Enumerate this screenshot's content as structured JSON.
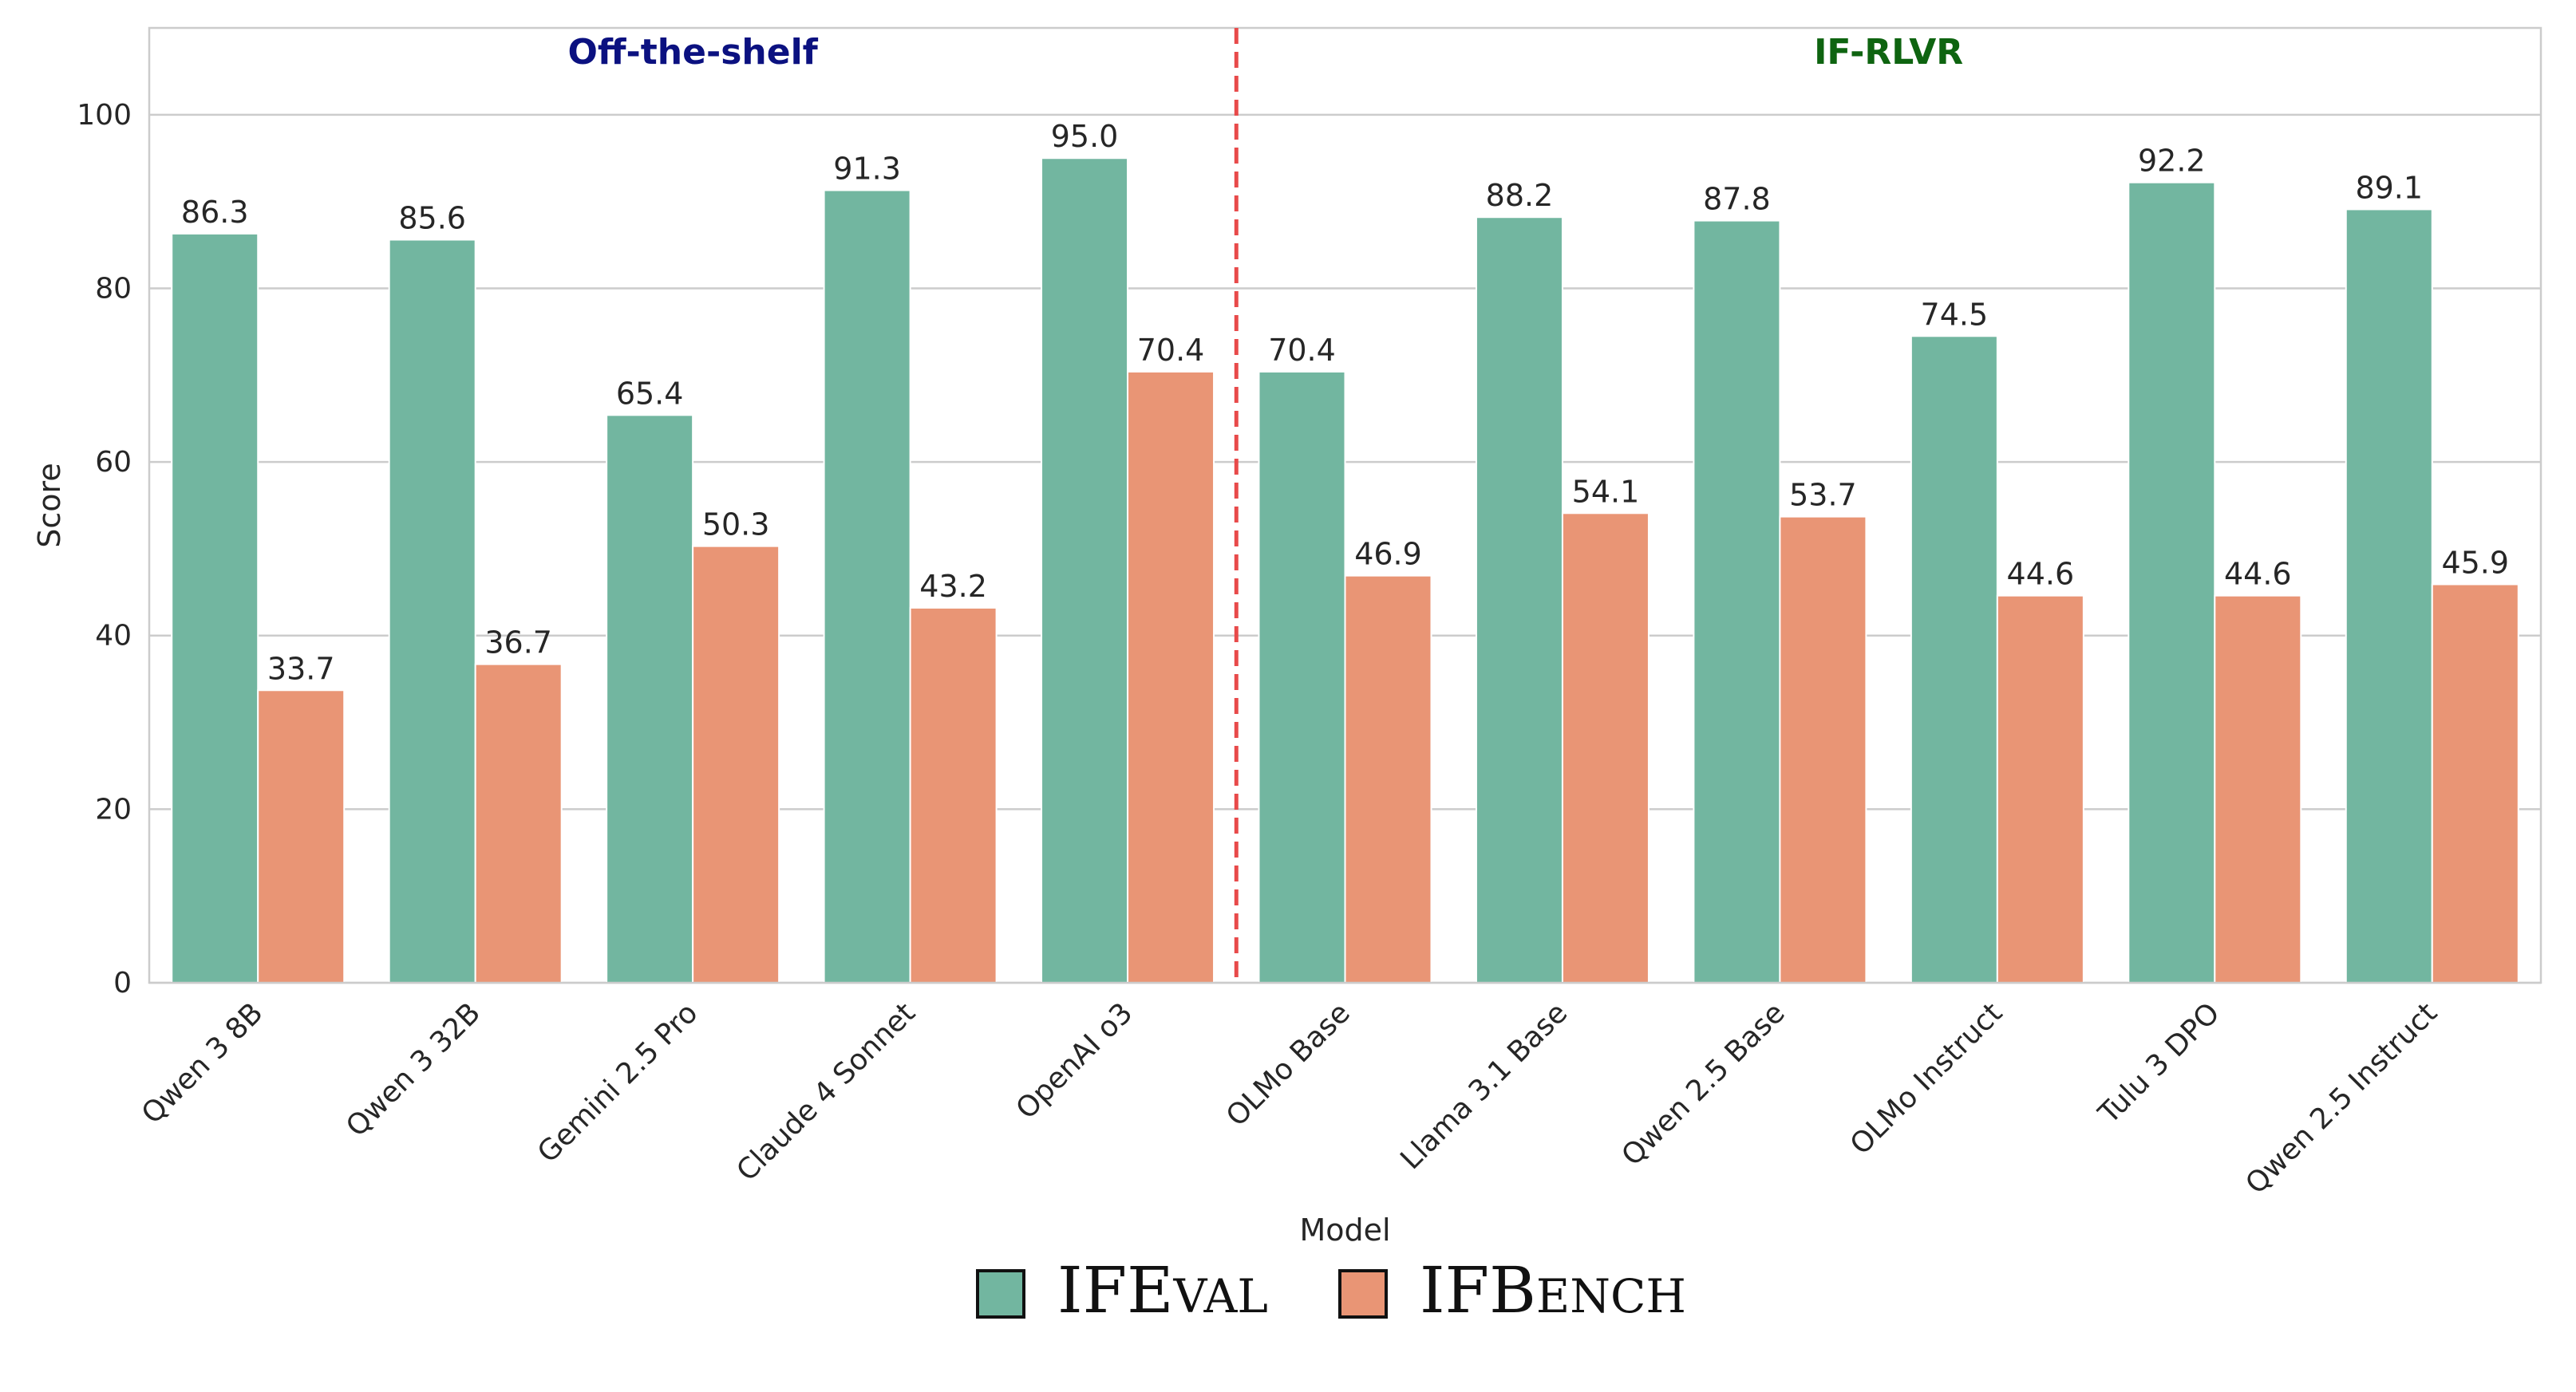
{
  "chart_data": {
    "type": "bar",
    "title": "",
    "xlabel": "Model",
    "ylabel": "Score",
    "ylim": [
      0,
      110
    ],
    "yticks": [
      0,
      20,
      40,
      60,
      80,
      100
    ],
    "grid": true,
    "legend_position": "bottom-center",
    "categories": [
      "Qwen 3 8B",
      "Qwen 3 32B",
      "Gemini 2.5 Pro",
      "Claude 4 Sonnet",
      "OpenAI o3",
      "OLMo Base",
      "Llama 3.1 Base",
      "Qwen 2.5 Base",
      "OLMo Instruct",
      "Tulu 3 DPO",
      "Qwen 2.5 Instruct"
    ],
    "series": [
      {
        "name": "IFEval",
        "color": "#72b6a0",
        "values": [
          86.3,
          85.6,
          65.4,
          91.3,
          95.0,
          70.4,
          88.2,
          87.8,
          74.5,
          92.2,
          89.1
        ]
      },
      {
        "name": "IFBench",
        "color": "#e99575",
        "values": [
          33.7,
          36.7,
          50.3,
          43.2,
          70.4,
          46.9,
          54.1,
          53.7,
          44.6,
          44.6,
          45.9
        ]
      }
    ],
    "groups": [
      {
        "label": "Off-the-shelf",
        "color": "#0b1180",
        "from": 0,
        "to": 4
      },
      {
        "label": "IF-RLVR",
        "color": "#0e6410",
        "from": 5,
        "to": 10
      }
    ],
    "divider": {
      "after_index": 4,
      "color": "#e84a4a",
      "style": "dashed"
    }
  }
}
